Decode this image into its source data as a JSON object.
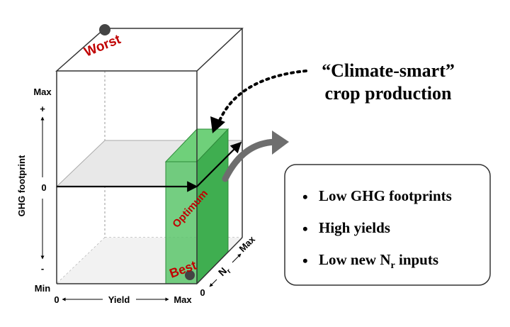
{
  "diagram": {
    "markers": {
      "worst": "Worst",
      "best": "Best",
      "optimum": "Optimum"
    },
    "y_axis": {
      "label": "GHG footprint",
      "max": "Max",
      "plus": "+",
      "zero": "0",
      "minus": "-",
      "min": "Min"
    },
    "x_axis": {
      "zero": "0",
      "label": "Yield",
      "max": "Max"
    },
    "z_axis": {
      "zero": "0",
      "label_main": "N",
      "label_sub": "r",
      "max": "Max"
    },
    "callout": {
      "line1": "“Climate-smart”",
      "line2": "crop production"
    },
    "benefits": [
      {
        "bullet": "•",
        "text": "Low GHG footprints",
        "sub": ""
      },
      {
        "bullet": "•",
        "text": "High yields",
        "sub": ""
      },
      {
        "bullet": "•",
        "text": "Low new N",
        "sub": "r",
        "suffix": " inputs"
      }
    ],
    "colors": {
      "green": "#2fb34a",
      "worst_red": "#c00000",
      "dot": "#444444"
    }
  }
}
